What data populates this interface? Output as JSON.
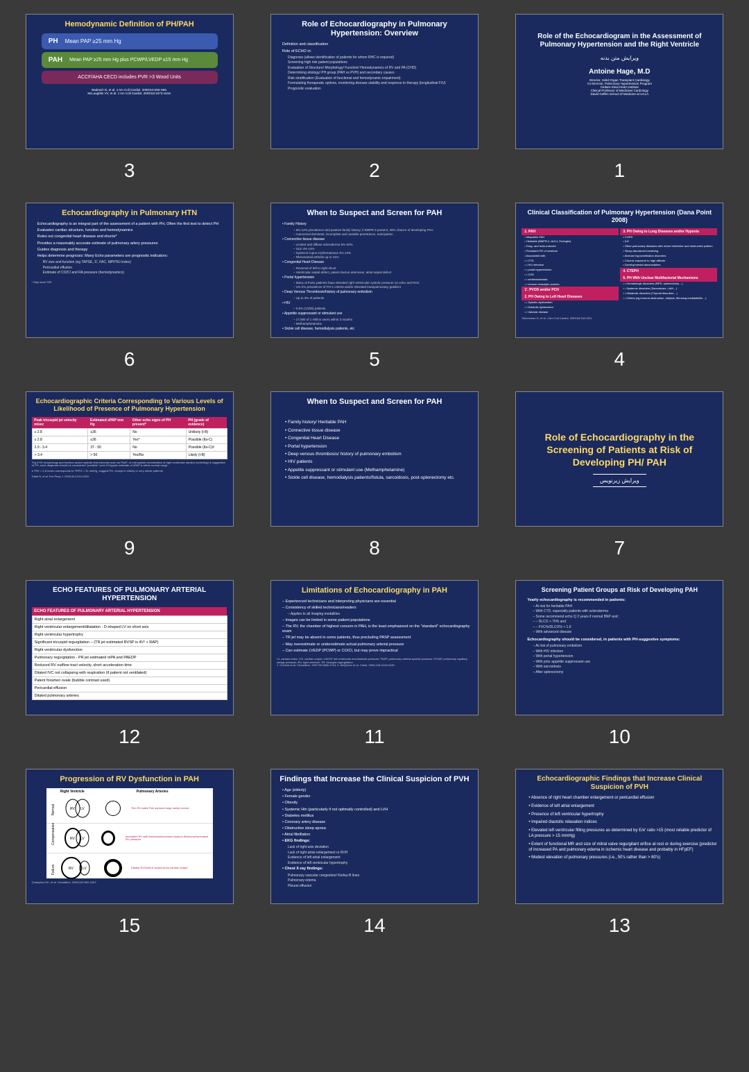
{
  "background": "#3a3a3a",
  "slide_bg": "#1a2a5e",
  "accent_yellow": "#ffd966",
  "accent_magenta": "#c02060",
  "slides": [
    {
      "num": "3",
      "title": "Hemodynamic Definition of PH/PAH",
      "boxes": [
        {
          "label": "PH",
          "text": "Mean PAP ≥25 mm Hg",
          "color": "#3a5bb0"
        },
        {
          "label": "PAH",
          "text": "Mean PAP ≥25 mm Hg plus PCWP/LVEDP ≤15 mm Hg",
          "color": "#5a8a3a"
        },
        {
          "label": "",
          "text": "ACCF/AHA CECD includes PVR >3 Wood Units",
          "color": "#7a2a5a"
        }
      ],
      "citation": "Badesch D, et al. J Am Coll Cardiol. 2009;54:S55-S66.\nMcLaughlin VV, et al. J Am Coll Cardiol. 2009;53:1573-1619."
    },
    {
      "num": "2",
      "title": "Role of Echocardiography in Pulmonary Hypertension: Overview",
      "bullets": [
        "Definition and classification",
        "Role of ECHO in:"
      ],
      "subs": [
        "Diagnosis (allows identification of patients for whom RHC is required)",
        "Screening high risk patient populations",
        "Evaluation of Structure/ Morphology/ Function/ Hemodynamics of RV and PA (CHD)",
        "Determining etiology/ PH group (PAH vs PVH) and secondary causes",
        "Risk stratification (Evaluation of functional and hemodynamic impairment)",
        "Formulating therapeutic options, monitoring disease stability and response to therapy (longitudinal F/U)",
        "Prognostic evaluation"
      ]
    },
    {
      "num": "1",
      "title": "Role of the Echocardiogram in the Assessment of Pulmonary Hypertension and the Right Ventricle",
      "arabic": "ویرایش متن بدنه",
      "author": "Antoine Hage, M.D",
      "credentials": "Director, Solid Organ Transplant Cardiology\nCo-Director, Pulmonary Hypertension Program\nCedars-Sinai Heart Institute\nClinical Professor of Medicine/ Cardiology\nDavid Geffen School of Medicine at UCLA"
    },
    {
      "num": "6",
      "title": "Echocardiography in Pulmonary HTN",
      "bullets": [
        "Echocardiography is an integral part of the assessment of a patient with PH, Often the first test to detect PH",
        "Evaluates cardiac structure, function and hemodynamics",
        "Rules out congenital heart disease and shunts*",
        "Provides a reasonably accurate estimate of pulmonary artery pressures",
        "Guides diagnosis and therapy",
        "Helps determine prognosis: Many Echo parameters are prognostic indicators:"
      ],
      "subs": [
        "RV size and function (eg TAPSE, S', FAC, MPI/TEI index)",
        "Pericardial effusion",
        "Estimate of CO/CI and RA pressure (hemodynamics)"
      ],
      "footnote": "* May need TEE"
    },
    {
      "num": "5",
      "title": "When to Suspect and Screen for PAH",
      "bullets": [
        "Family History",
        "Connective tissue disease",
        "Congenital Heart Disease",
        "Portal hypertension",
        "Deep Venous Thrombosis/history of pulmonary embolism",
        "HIV",
        "Appetite suppressant or stimulant use",
        "Sickle cell disease, hemodialysis patients, etc"
      ],
      "subs_map": {
        "0": [
          "6%-12% prevalence and positive family history; if BMPR-2 present, 20% chance of developing PAH",
          "Autosomal dominant, incomplete and variable penetrance, anticipation"
        ],
        "1": [
          "Limited and diffuse scleroderma 8%-30%",
          "SLE 4%-14%",
          "Systemic lupus erythematosus 4%-14%",
          "Rheumatoid arthritis up to 21%"
        ],
        "2": [
          "Reversal of left-to-right shunt",
          "Ventricular septal defect, patent ductus arteriosus, atrial septal defect"
        ],
        "3": [
          "Many cirrhotic patients have elevated right ventricular systolic pressure on echo and RHC",
          "1%-2% prevalence of PH-1 criteria and/or elevated transpulmonary gradient"
        ],
        "4": [
          "Up to 3% of patients"
        ],
        "5": [
          "0.5% (1/200) patients"
        ],
        "6": [
          "17,000 of 1 million users within 3 months",
          "Methamphetamine"
        ]
      }
    },
    {
      "num": "4",
      "title": "Clinical Classification of Pulmonary Hypertension (Dana Point 2008)",
      "cols": [
        {
          "head": "1. PAH",
          "items": [
            "Idiopathic PAH",
            "Heritable (BMPR-2, ALK1, Endoglin)",
            "Drug- and toxin-induced",
            "Persistent PH of newborn",
            "Associated with",
            "  • CTD",
            "  • HIV infection",
            "  • portal hypertension",
            "  • CHD",
            "  • schistosomiasis",
            "  • chronic hemolytic anemia",
            "1'. PVOD and/or PCH",
            "2. PH Owing to Left Heart Diseases",
            "  • Systolic dysfunction",
            "  • Diastolic dysfunction",
            "  • Valvular disease"
          ]
        },
        {
          "head": "3. PH Owing to Lung Diseases and/or Hypoxia",
          "items": [
            "COPD",
            "ILD",
            "Other pulmonary diseases with mixed restrictive and obstructive pattern",
            "Sleep-disordered breathing",
            "Alveolar hypoventilation disorders",
            "Chronic exposure to high altitude",
            "Developmental abnormalities",
            "4. CTEPH",
            "5. PH With Unclear Multifactorial Mechanisms",
            "  • Hematologic disorders (MPD, splenectomy…)",
            "  • Systemic disorders (Sarcoidosis, LAM…)",
            "  • Metabolic disorders (Thyroid disorders…)",
            "  • Others (eg,tumoral obstruction, dialysis, fibrosing mediastinitis…)"
          ]
        }
      ],
      "citation": "Simonneau G, et al. J Am Coll Cardiol. 2009;54:S43-S54."
    },
    {
      "num": "9",
      "title": "Echocardiographic Criteria Corresponding to Various Levels of Likelihood of Presence of Pulmonary Hypertension",
      "headers": [
        "Peak tricuspid jet velocity m/sec",
        "Estimated sPAP mm Hg",
        "Other echo signs of PH present*",
        "PH (grade of evidence)"
      ],
      "rows": [
        [
          "≤ 2.8",
          "≤36",
          "No",
          "Unlikely (I-B)"
        ],
        [
          "≤ 2.8",
          "≤36",
          "Yes*",
          "Possible (IIa-C)"
        ],
        [
          "2.9 - 3.4",
          "37 - 50",
          "No",
          "Possible (IIa-C)#"
        ],
        [
          "> 3.4",
          "> 50",
          "Yes/No",
          "Likely (I-B)"
        ]
      ],
      "footnotes": [
        "*Eg if RV morphology and function and/or systolic time intervals such as PAAT, or mid systolic deceleration of right ventricular ejection (notching) is suggestive of PH, such diagnosis should be considered \"possible\" even if Doppler estimate of sPAP is within normal range.",
        "# TRV > 2.8 m/sec corresponds to TRPG > 31 mmHg, suggest PH, except in elderly or very obese patients"
      ],
      "citation": "Galie N, et al. Eur Resp J. 2009;34:1219-1263."
    },
    {
      "num": "8",
      "title": "When to Suspect and Screen for PAH",
      "bullets": [
        "Family history/ Heritable PAH",
        "Connective tissue disease",
        "Congenital Heart Disease",
        "Portal hypertension",
        "Deep venous thrombosis/ history of pulmonary embolism",
        "HIV patients",
        "Appetite suppressant or stimulant use (Methamphetamine)",
        "Sickle cell disease, hemodialysis patients/fistula, sarcoidosis, post-splenectomy etc."
      ]
    },
    {
      "num": "7",
      "big_title": "Role of Echocardiography in the Screening of Patients at Risk of Developing PH/ PAH",
      "arabic": "ویرایش زیرنویس"
    },
    {
      "num": "12",
      "title": "ECHO FEATURES OF PULMONARY ARTERIAL HYPERTENSION",
      "table_head": "ECHO FEATURES OF PULMONARY ARTERIAL HYPERTENSION",
      "rows": [
        "Right atrial enlargement",
        "Right ventricular enlargement/dilatation - D-shaped LV on short axis",
        "Right ventricular hypertrophy",
        "Significant tricuspid regurgitation – (TR jet estimated RVSP is 4V² + RAP)",
        "Right ventricular dysfunction",
        "Pulmonary regurgitation - PR jet estimated mPA and PAEDP",
        "Reduced RV outflow tract velocity, short acceleration time",
        "Dilated IVC not collapsing with respiration (if patient not ventilated)",
        "Patent foramen ovale (bubble contrast used)",
        "Pericardial effusion",
        "Dilated pulmonary arteries"
      ]
    },
    {
      "num": "11",
      "title": "Limitations of Echocardiography in PAH",
      "bullets": [
        "Experienced technicians and interpreting physicians are essential",
        "Consistency of skilled technicians/readers",
        "Images can be limited in some patient populations",
        "The RV, the chamber of highest concern in PAH, is the least emphasized on the \"standard\" echocardiography exam",
        "TR jet may be absent in some patients, thus precluding PASP assessment",
        "May overestimate or underestimate actual pulmonary arterial pressure",
        "Can estimate LVEDP (PCWP) or CO/CI, but may prove impractical"
      ],
      "sub": "Applies to all imaging modalities",
      "citation": "CI, cardiac index; CO, cardiac output; LVEDP, left ventricular end-diastolic pressure; PASP, pulmonary arterial systolic pressure; PCWP, pulmonary capillary wedge pressure; RV, right ventricle; TR, tricuspid regurgitation.\n1. Chemla et al. Circulation. 1997;95:1686-1744.    2. McQueen et al. Chest. 2004;126:1143-S145."
    },
    {
      "num": "10",
      "title": "Screening Patient Groups at Risk of Developing PAH",
      "bullets": [
        "Yearly echocardiography is recommended in patients:"
      ],
      "subs1": [
        "At risk for heritable PAH",
        "With CTD, especially patients with scleroderma",
        "Some recommend echo Q 2 years if normal BNP and :",
        "  – DLCO > 70% and",
        "  – FVC%/DLCO% < 1.6",
        "With advanced disease"
      ],
      "bullets2": [
        "Echocardiography should be considered, in patients with PH-suggestive symptoms:"
      ],
      "subs2": [
        "At risk of pulmonary embolism",
        "With HIV infection",
        "With portal hypertension",
        "With prior appetite suppressant use",
        "With sarcoidosis",
        "After splenectomy"
      ]
    },
    {
      "num": "15",
      "title": "Progression of RV Dysfunction in PAH",
      "col_heads": [
        "Right Ventricle",
        "Pulmonary Arteries"
      ],
      "row_labels": [
        "Normal",
        "Compensation",
        "Failure"
      ],
      "annotations": [
        "Thin RV walls/Thin septum/Large cavity normal",
        "Increased RV wall thickness/Increased septum thickness/Increased RV pressure",
        "Dilated RV/Shift of septum/Low cardiac output"
      ],
      "citation": "Champion HC, et al. Circulation. 2009;120:992-1007."
    },
    {
      "num": "14",
      "title": "Findings that Increase the Clinical Suspicion of PVH",
      "bullets": [
        "Age (elderly)",
        "Female gender",
        "Obesity",
        "Systemic Htn (particularly if not optimally controlled) and LVH",
        "Diabetes mellitus",
        "Coronary artery disease",
        "Obstructive sleep apnea",
        "Atrial fibrillation"
      ],
      "sections": [
        {
          "head": "EKG findings:",
          "items": [
            "Lack of right axis deviation",
            "Lack of right atrial enlargement or RVH",
            "Evidence of left atrial enlargement",
            "Evidence of left ventricular hypertrophy"
          ]
        },
        {
          "head": "Chest X-ray findings:",
          "items": [
            "Pulmonary vascular congestion/ Kerley-B lines",
            "Pulmonary edema",
            "Pleural effusion"
          ]
        }
      ]
    },
    {
      "num": "13",
      "title": "Echocardiographic Findings that Increase Clinical Suspicion of PVH",
      "bullets": [
        "Absence of right heart chamber enlargement or pericardial effusion",
        "Evidence of left atrial enlargement",
        "Presence of left ventricular hypertrophy",
        "Impaired diastolic relaxation indices",
        "Elevated left ventricular filling pressures as determined by E/e' ratio >15 (most reliable predictor of LA pressure > 15 mmHg)",
        "Extent of functional MR and size of mitral valve regurgitant orifice at rest or during exercise (predictor of increased PA and pulmonary edema in ischemic heart disease and probably in HFpEF)",
        "Modest elevation of pulmonary pressures (i.e., 50's rather than > 80's)"
      ]
    }
  ]
}
